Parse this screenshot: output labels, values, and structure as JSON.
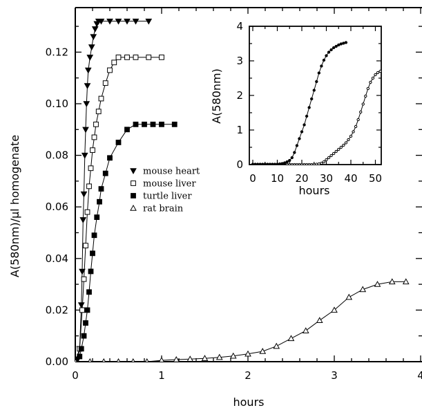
{
  "chart_data": [
    {
      "id": "main",
      "type": "line",
      "title": "",
      "xlabel": "hours",
      "ylabel": "A(580nm)/μl homogenate",
      "xlim": [
        0,
        4
      ],
      "ylim": [
        0,
        0.135
      ],
      "x_ticks": [
        "0",
        "1",
        "2",
        "3",
        "4"
      ],
      "y_ticks": [
        "0.00",
        "0.02",
        "0.04",
        "0.06",
        "0.08",
        "0.10",
        "0.12"
      ],
      "legend_position": "center",
      "series": [
        {
          "name": "mouse heart",
          "marker": "triangle-down-filled",
          "x": [
            0.0,
            0.03,
            0.05,
            0.07,
            0.08,
            0.09,
            0.1,
            0.11,
            0.12,
            0.13,
            0.14,
            0.15,
            0.17,
            0.19,
            0.21,
            0.23,
            0.25,
            0.27,
            0.3,
            0.4,
            0.5,
            0.6,
            0.7,
            0.85
          ],
          "y": [
            0.0,
            0.001,
            0.005,
            0.022,
            0.035,
            0.055,
            0.065,
            0.08,
            0.09,
            0.1,
            0.107,
            0.113,
            0.118,
            0.122,
            0.126,
            0.129,
            0.131,
            0.132,
            0.132,
            0.132,
            0.132,
            0.132,
            0.132,
            0.132
          ]
        },
        {
          "name": "mouse liver",
          "marker": "square-open",
          "x": [
            0.0,
            0.05,
            0.08,
            0.1,
            0.12,
            0.14,
            0.16,
            0.18,
            0.2,
            0.22,
            0.24,
            0.27,
            0.3,
            0.35,
            0.4,
            0.45,
            0.5,
            0.6,
            0.7,
            0.85,
            1.0
          ],
          "y": [
            0.0,
            0.005,
            0.02,
            0.032,
            0.045,
            0.058,
            0.068,
            0.075,
            0.082,
            0.087,
            0.092,
            0.097,
            0.102,
            0.108,
            0.113,
            0.116,
            0.118,
            0.118,
            0.118,
            0.118,
            0.118
          ]
        },
        {
          "name": "turtle liver",
          "marker": "square-filled",
          "x": [
            0.0,
            0.05,
            0.07,
            0.1,
            0.12,
            0.14,
            0.16,
            0.18,
            0.2,
            0.22,
            0.25,
            0.28,
            0.3,
            0.35,
            0.4,
            0.5,
            0.6,
            0.7,
            0.8,
            0.9,
            1.0,
            1.15
          ],
          "y": [
            0.0,
            0.002,
            0.005,
            0.01,
            0.015,
            0.02,
            0.027,
            0.035,
            0.042,
            0.049,
            0.056,
            0.062,
            0.067,
            0.073,
            0.079,
            0.085,
            0.09,
            0.092,
            0.092,
            0.092,
            0.092,
            0.092
          ]
        },
        {
          "name": "rat brain",
          "marker": "triangle-up-open",
          "x": [
            0.0,
            0.17,
            0.33,
            0.5,
            0.67,
            0.83,
            1.0,
            1.17,
            1.33,
            1.5,
            1.67,
            1.83,
            2.0,
            2.17,
            2.33,
            2.5,
            2.67,
            2.83,
            3.0,
            3.17,
            3.33,
            3.5,
            3.67,
            3.83
          ],
          "y": [
            0.0,
            0.0,
            0.0,
            0.0,
            0.0,
            0.0,
            0.0005,
            0.0008,
            0.001,
            0.0013,
            0.0017,
            0.0022,
            0.003,
            0.004,
            0.006,
            0.009,
            0.012,
            0.016,
            0.02,
            0.025,
            0.028,
            0.03,
            0.031,
            0.031
          ]
        }
      ]
    },
    {
      "id": "inset",
      "type": "line",
      "title": "",
      "xlabel": "hours",
      "ylabel": "A(580nm)",
      "xlim": [
        0,
        53
      ],
      "ylim": [
        0,
        4
      ],
      "x_ticks": [
        "0",
        "10",
        "20",
        "30",
        "40",
        "50"
      ],
      "y_ticks": [
        "0",
        "1",
        "2",
        "3",
        "4"
      ],
      "series": [
        {
          "marker": "circle-filled",
          "x": [
            0,
            1,
            2,
            3,
            4,
            5,
            6,
            7,
            8,
            9,
            10,
            11,
            12,
            13,
            14,
            15,
            16,
            17,
            18,
            19,
            20,
            21,
            22,
            23,
            24,
            25,
            26,
            27,
            28,
            29,
            30,
            31,
            32,
            33,
            34,
            35,
            36,
            37,
            38
          ],
          "y": [
            0.01,
            0.01,
            0.01,
            0.01,
            0.01,
            0.01,
            0.01,
            0.01,
            0.01,
            0.01,
            0.01,
            0.02,
            0.03,
            0.05,
            0.08,
            0.12,
            0.2,
            0.35,
            0.55,
            0.75,
            0.95,
            1.15,
            1.4,
            1.65,
            1.9,
            2.15,
            2.4,
            2.65,
            2.85,
            3.02,
            3.15,
            3.25,
            3.32,
            3.38,
            3.42,
            3.46,
            3.49,
            3.51,
            3.53
          ]
        },
        {
          "marker": "circle-open",
          "x": [
            14,
            15,
            16,
            17,
            18,
            19,
            20,
            21,
            22,
            23,
            24,
            25,
            26,
            27,
            28,
            29,
            30,
            31,
            32,
            33,
            34,
            35,
            36,
            37,
            38,
            39,
            40,
            41,
            42,
            43,
            44,
            45,
            46,
            47,
            48,
            49,
            50,
            51,
            52
          ],
          "y": [
            0.0,
            0.0,
            0.0,
            0.0,
            0.0,
            0.0,
            0.0,
            0.0,
            0.0,
            0.0,
            0.0,
            0.0,
            0.01,
            0.02,
            0.04,
            0.08,
            0.14,
            0.2,
            0.26,
            0.32,
            0.38,
            0.44,
            0.5,
            0.56,
            0.63,
            0.72,
            0.82,
            0.95,
            1.1,
            1.3,
            1.52,
            1.75,
            1.98,
            2.2,
            2.38,
            2.5,
            2.6,
            2.66,
            2.7
          ]
        }
      ]
    }
  ]
}
